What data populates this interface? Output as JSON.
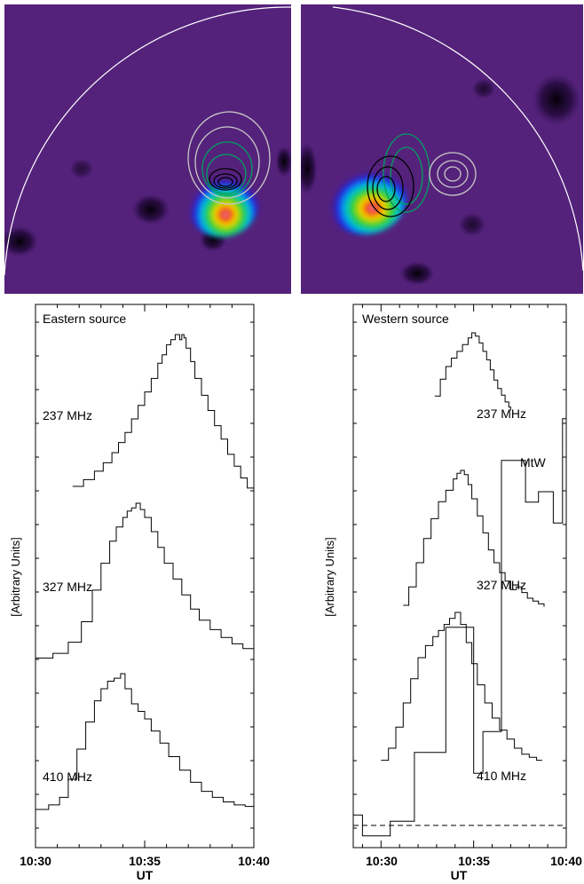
{
  "images": {
    "left": {
      "name": "eastern-radio-image"
    },
    "right": {
      "name": "western-radio-image"
    }
  },
  "chart_data": [
    {
      "type": "line",
      "panel": "left",
      "title": "Eastern source",
      "xlabel": "UT",
      "ylabel": "[Arbitrary Units]",
      "xticks": [
        "10:30",
        "10:35",
        "10:40"
      ],
      "xlim": [
        0,
        10
      ],
      "step": true,
      "series": [
        {
          "name": "237 MHz",
          "x": [
            1.7,
            2.2,
            2.7,
            3.1,
            3.5,
            3.8,
            4.1,
            4.4,
            4.7,
            5.0,
            5.3,
            5.6,
            5.8,
            6.0,
            6.2,
            6.4,
            6.5,
            6.6,
            6.7,
            6.8,
            6.9,
            7.1,
            7.3,
            7.6,
            7.9,
            8.2,
            8.5,
            8.8,
            9.1,
            9.4,
            9.7,
            10.0
          ],
          "y": [
            0.1,
            0.14,
            0.19,
            0.24,
            0.3,
            0.36,
            0.42,
            0.5,
            0.58,
            0.66,
            0.74,
            0.83,
            0.88,
            0.94,
            0.97,
            1.0,
            1.0,
            0.97,
            1.0,
            0.98,
            0.92,
            0.84,
            0.74,
            0.64,
            0.55,
            0.46,
            0.38,
            0.29,
            0.22,
            0.15,
            0.09,
            0.05
          ]
        },
        {
          "name": "327 MHz",
          "x": [
            0.0,
            0.8,
            1.5,
            2.1,
            2.6,
            3.0,
            3.4,
            3.7,
            4.0,
            4.2,
            4.4,
            4.6,
            4.8,
            5.0,
            5.3,
            5.6,
            5.9,
            6.3,
            6.7,
            7.1,
            7.5,
            8.0,
            8.5,
            9.0,
            9.5,
            10.0
          ],
          "y": [
            0.02,
            0.05,
            0.12,
            0.25,
            0.45,
            0.62,
            0.76,
            0.85,
            0.91,
            0.95,
            0.97,
            1.0,
            0.96,
            0.91,
            0.82,
            0.72,
            0.62,
            0.52,
            0.42,
            0.33,
            0.26,
            0.2,
            0.15,
            0.11,
            0.08,
            0.06
          ]
        },
        {
          "name": "410 MHz",
          "x": [
            0.0,
            0.6,
            1.1,
            1.5,
            1.9,
            2.3,
            2.7,
            3.0,
            3.3,
            3.6,
            3.9,
            4.1,
            4.4,
            4.7,
            5.0,
            5.3,
            5.7,
            6.1,
            6.6,
            7.1,
            7.6,
            8.1,
            8.6,
            9.1,
            9.6,
            10.0
          ],
          "y": [
            0.0,
            0.03,
            0.08,
            0.2,
            0.4,
            0.58,
            0.72,
            0.8,
            0.85,
            0.87,
            0.9,
            0.8,
            0.7,
            0.65,
            0.6,
            0.52,
            0.44,
            0.35,
            0.26,
            0.18,
            0.12,
            0.08,
            0.05,
            0.03,
            0.02,
            0.02
          ]
        }
      ]
    },
    {
      "type": "line",
      "panel": "right",
      "title": "Western source",
      "xlabel": "UT",
      "ylabel": "[Arbitrary Units]",
      "xticks": [
        "10:30",
        "10:35",
        "10:40"
      ],
      "xlim": [
        -1.5,
        10
      ],
      "step": true,
      "series": [
        {
          "name": "237 MHz",
          "x": [
            2.9,
            3.2,
            3.5,
            3.8,
            4.1,
            4.4,
            4.7,
            4.9,
            5.1,
            5.3,
            5.5,
            5.7,
            5.9,
            6.1,
            6.3,
            6.5,
            6.7,
            6.9,
            7.0
          ],
          "y": [
            0.25,
            0.45,
            0.6,
            0.7,
            0.78,
            0.86,
            0.94,
            1.0,
            0.96,
            0.88,
            0.78,
            0.68,
            0.56,
            0.44,
            0.34,
            0.26,
            0.18,
            0.12,
            0.08
          ]
        },
        {
          "name": "327 MHz",
          "x": [
            1.2,
            1.5,
            1.9,
            2.3,
            2.7,
            3.1,
            3.5,
            3.9,
            4.1,
            4.3,
            4.5,
            4.7,
            4.9,
            5.2,
            5.5,
            5.8,
            6.1,
            6.4,
            6.7,
            7.0,
            7.3,
            7.6,
            7.9,
            8.2,
            8.5,
            8.8
          ],
          "y": [
            0.05,
            0.18,
            0.35,
            0.52,
            0.66,
            0.78,
            0.86,
            0.94,
            0.98,
            1.0,
            0.97,
            0.9,
            0.8,
            0.68,
            0.56,
            0.44,
            0.35,
            0.28,
            0.22,
            0.16,
            0.18,
            0.14,
            0.1,
            0.08,
            0.06,
            0.04
          ]
        },
        {
          "name": "410 MHz",
          "x": [
            0.0,
            0.4,
            0.8,
            1.2,
            1.6,
            2.0,
            2.4,
            2.8,
            3.1,
            3.4,
            3.7,
            4.0,
            4.3,
            4.6,
            4.9,
            5.2,
            5.6,
            6.0,
            6.4,
            6.8,
            7.2,
            7.6,
            8.0,
            8.4,
            8.7
          ],
          "y": [
            0.02,
            0.1,
            0.24,
            0.4,
            0.56,
            0.7,
            0.78,
            0.84,
            0.88,
            0.92,
            0.96,
            1.0,
            0.92,
            0.8,
            0.66,
            0.52,
            0.4,
            0.3,
            0.22,
            0.16,
            0.1,
            0.06,
            0.04,
            0.02,
            0.02
          ]
        },
        {
          "name": "MtW",
          "x": [
            -1.5,
            -1.0,
            0.0,
            0.5,
            1.8,
            2.5,
            3.5,
            4.2,
            5.0,
            5.5,
            6.5,
            7.2,
            7.8,
            8.5,
            9.3,
            9.8,
            10.0
          ],
          "y": [
            0.05,
            -0.05,
            -0.05,
            0.02,
            0.35,
            0.35,
            0.95,
            0.95,
            0.25,
            0.45,
            1.75,
            1.75,
            1.55,
            1.6,
            1.45,
            1.95,
            1.95
          ]
        }
      ],
      "baseline": {
        "style": "dashed",
        "y": 0.0
      }
    }
  ]
}
